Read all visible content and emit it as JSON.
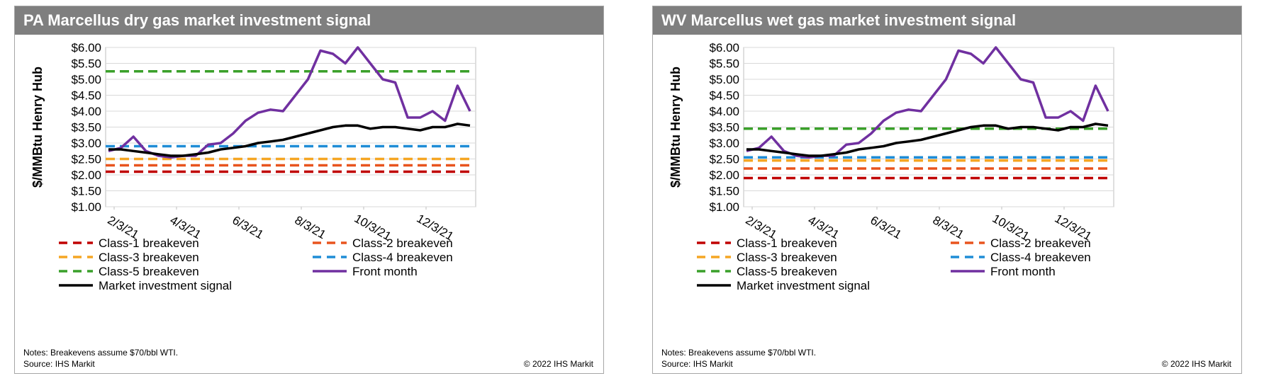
{
  "chart_data": [
    {
      "type": "line",
      "title": "PA Marcellus dry gas market investment signal",
      "ylabel": "$/MMBtu Henry Hub",
      "ylim": [
        1.0,
        6.0
      ],
      "yticks": [
        "$6.00",
        "$5.50",
        "$5.00",
        "$4.50",
        "$4.00",
        "$3.50",
        "$3.00",
        "$2.50",
        "$2.00",
        "$1.50",
        "$1.00"
      ],
      "xticks": [
        "2/3/21",
        "4/3/21",
        "6/3/21",
        "8/3/21",
        "10/3/21",
        "12/3/21"
      ],
      "breakevens": [
        {
          "name": "Class-1 breakeven",
          "value": 2.1,
          "color": "#c00000"
        },
        {
          "name": "Class-2 breakeven",
          "value": 2.3,
          "color": "#e8541e"
        },
        {
          "name": "Class-3 breakeven",
          "value": 2.5,
          "color": "#f5a623"
        },
        {
          "name": "Class-4 breakeven",
          "value": 2.9,
          "color": "#1f8dd6"
        },
        {
          "name": "Class-5 breakeven",
          "value": 5.25,
          "color": "#3aa02a"
        }
      ],
      "series": [
        {
          "name": "Front month",
          "color": "#7030a0",
          "values": [
            2.75,
            2.85,
            3.2,
            2.75,
            2.6,
            2.55,
            2.6,
            2.6,
            2.95,
            3.0,
            3.3,
            3.7,
            3.95,
            4.05,
            4.0,
            4.5,
            5.0,
            5.9,
            5.8,
            5.5,
            6.0,
            5.5,
            5.0,
            4.9,
            3.8,
            3.8,
            4.0,
            3.7,
            4.8,
            4.0
          ]
        },
        {
          "name": "Market investment signal",
          "color": "#000000",
          "values": [
            2.8,
            2.8,
            2.75,
            2.7,
            2.65,
            2.6,
            2.6,
            2.65,
            2.7,
            2.8,
            2.85,
            2.9,
            3.0,
            3.05,
            3.1,
            3.2,
            3.3,
            3.4,
            3.5,
            3.55,
            3.55,
            3.45,
            3.5,
            3.5,
            3.45,
            3.4,
            3.5,
            3.5,
            3.6,
            3.55
          ]
        }
      ],
      "legend_order": [
        "Class-1 breakeven",
        "Class-2 breakeven",
        "Class-3 breakeven",
        "Class-4 breakeven",
        "Class-5 breakeven",
        "Front month",
        "Market investment signal"
      ],
      "notes": "Notes: Breakevens assume $70/bbl WTI.",
      "source": "Source: IHS Markit",
      "copyright": "© 2022 IHS Markit"
    },
    {
      "type": "line",
      "title": "WV Marcellus wet gas market investment signal",
      "ylabel": "$/MMBtu Henry Hub",
      "ylim": [
        1.0,
        6.0
      ],
      "yticks": [
        "$6.00",
        "$5.50",
        "$5.00",
        "$4.50",
        "$4.00",
        "$3.50",
        "$3.00",
        "$2.50",
        "$2.00",
        "$1.50",
        "$1.00"
      ],
      "xticks": [
        "2/3/21",
        "4/3/21",
        "6/3/21",
        "8/3/21",
        "10/3/21",
        "12/3/21"
      ],
      "breakevens": [
        {
          "name": "Class-1 breakeven",
          "value": 1.9,
          "color": "#c00000"
        },
        {
          "name": "Class-2 breakeven",
          "value": 2.2,
          "color": "#e8541e"
        },
        {
          "name": "Class-3 breakeven",
          "value": 2.45,
          "color": "#f5a623"
        },
        {
          "name": "Class-4 breakeven",
          "value": 2.55,
          "color": "#1f8dd6"
        },
        {
          "name": "Class-5 breakeven",
          "value": 3.45,
          "color": "#3aa02a"
        }
      ],
      "series": [
        {
          "name": "Front month",
          "color": "#7030a0",
          "values": [
            2.75,
            2.85,
            3.2,
            2.75,
            2.6,
            2.55,
            2.6,
            2.6,
            2.95,
            3.0,
            3.3,
            3.7,
            3.95,
            4.05,
            4.0,
            4.5,
            5.0,
            5.9,
            5.8,
            5.5,
            6.0,
            5.5,
            5.0,
            4.9,
            3.8,
            3.8,
            4.0,
            3.7,
            4.8,
            4.0
          ]
        },
        {
          "name": "Market investment signal",
          "color": "#000000",
          "values": [
            2.8,
            2.8,
            2.75,
            2.7,
            2.65,
            2.6,
            2.6,
            2.65,
            2.7,
            2.8,
            2.85,
            2.9,
            3.0,
            3.05,
            3.1,
            3.2,
            3.3,
            3.4,
            3.5,
            3.55,
            3.55,
            3.45,
            3.5,
            3.5,
            3.45,
            3.4,
            3.5,
            3.5,
            3.6,
            3.55
          ]
        }
      ],
      "legend_order": [
        "Class-1 breakeven",
        "Class-2 breakeven",
        "Class-3 breakeven",
        "Class-4 breakeven",
        "Class-5 breakeven",
        "Front month",
        "Market investment signal"
      ],
      "notes": "Notes: Breakevens assume $70/bbl WTI.",
      "source": "Source: IHS Markit",
      "copyright": "© 2022 IHS Markit"
    }
  ]
}
